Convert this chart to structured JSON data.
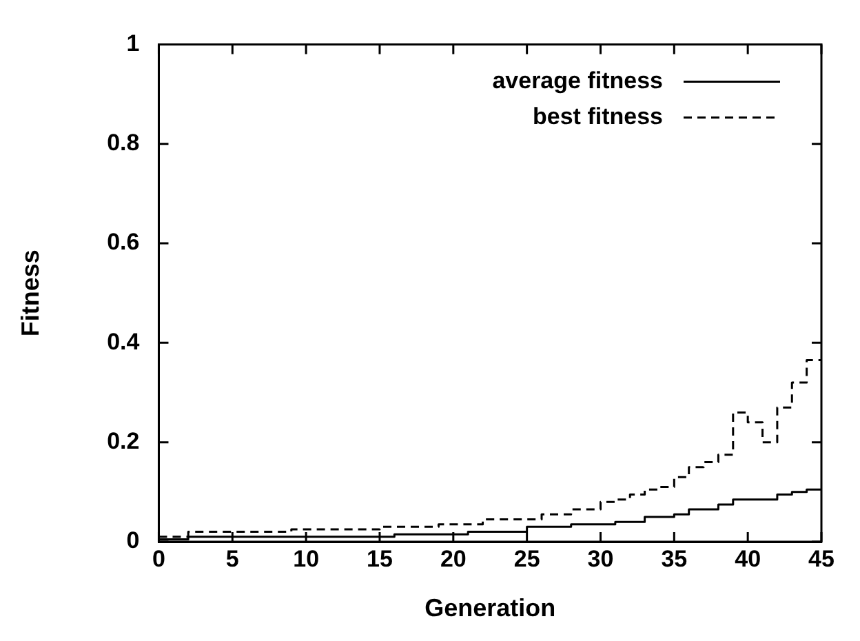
{
  "chart_data": {
    "type": "step",
    "xlabel": "Generation",
    "ylabel": "Fitness",
    "x": [
      0,
      1,
      2,
      3,
      4,
      5,
      6,
      7,
      8,
      9,
      10,
      11,
      12,
      13,
      14,
      15,
      16,
      17,
      18,
      19,
      20,
      21,
      22,
      23,
      24,
      25,
      26,
      27,
      28,
      29,
      30,
      31,
      32,
      33,
      34,
      35,
      36,
      37,
      38,
      39,
      40,
      41,
      42,
      43,
      44,
      45
    ],
    "series": [
      {
        "name": "average fitness",
        "color": "#000000",
        "line_style": "solid",
        "values": [
          0.005,
          0.005,
          0.01,
          0.01,
          0.01,
          0.01,
          0.01,
          0.01,
          0.01,
          0.01,
          0.01,
          0.01,
          0.01,
          0.01,
          0.01,
          0.01,
          0.015,
          0.015,
          0.015,
          0.015,
          0.015,
          0.02,
          0.02,
          0.02,
          0.02,
          0.03,
          0.03,
          0.03,
          0.035,
          0.035,
          0.035,
          0.04,
          0.04,
          0.05,
          0.05,
          0.055,
          0.065,
          0.065,
          0.075,
          0.085,
          0.085,
          0.085,
          0.095,
          0.1,
          0.105,
          0.105
        ]
      },
      {
        "name": "best fitness",
        "color": "#000000",
        "line_style": "dashed",
        "values": [
          0.01,
          0.01,
          0.02,
          0.02,
          0.02,
          0.02,
          0.02,
          0.02,
          0.02,
          0.025,
          0.025,
          0.025,
          0.025,
          0.025,
          0.025,
          0.03,
          0.03,
          0.03,
          0.03,
          0.035,
          0.035,
          0.035,
          0.045,
          0.045,
          0.045,
          0.045,
          0.055,
          0.055,
          0.065,
          0.065,
          0.08,
          0.085,
          0.095,
          0.105,
          0.11,
          0.13,
          0.15,
          0.16,
          0.175,
          0.26,
          0.24,
          0.2,
          0.27,
          0.32,
          0.365,
          0.365
        ]
      }
    ],
    "xlim": [
      0,
      45
    ],
    "xticks": [
      0,
      5,
      10,
      15,
      20,
      25,
      30,
      35,
      40,
      45
    ],
    "ylim": [
      0,
      1
    ],
    "yticks": [
      0,
      0.2,
      0.4,
      0.6,
      0.8,
      1
    ],
    "grid": false,
    "legend": "top right",
    "marker": "none"
  }
}
